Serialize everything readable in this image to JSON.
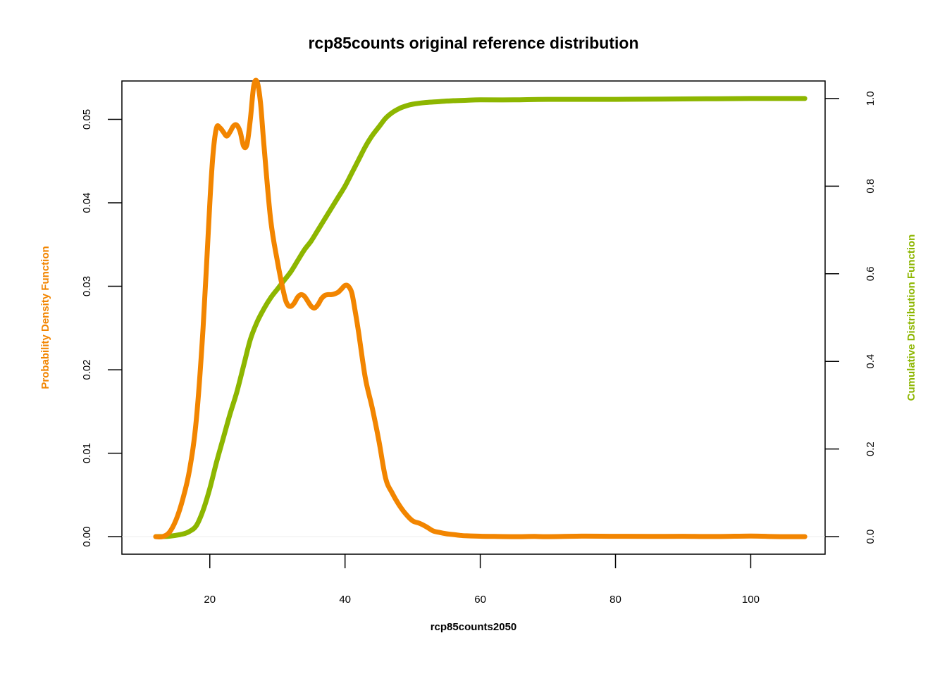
{
  "chart_data": {
    "type": "line",
    "title": "rcp85counts original reference distribution",
    "xlabel": "rcp85counts2050",
    "ylabel_left": "Probability Density Function",
    "ylabel_right": "Cumulative Distribution Function",
    "xlim": [
      7,
      111
    ],
    "ylim_left": [
      -0.0021,
      0.0546
    ],
    "ylim_right": [
      -0.04,
      1.04
    ],
    "x_ticks": [
      20,
      40,
      60,
      80,
      100
    ],
    "x_tick_labels": [
      "20",
      "40",
      "60",
      "80",
      "100"
    ],
    "y_left_ticks": [
      0,
      0.01,
      0.02,
      0.03,
      0.04,
      0.05
    ],
    "y_left_tick_labels": [
      "0.00",
      "0.01",
      "0.02",
      "0.03",
      "0.04",
      "0.05"
    ],
    "y_right_ticks": [
      0,
      0.2,
      0.4,
      0.6,
      0.8,
      1.0
    ],
    "y_right_tick_labels": [
      "0.0",
      "0.2",
      "0.4",
      "0.6",
      "0.8",
      "1.0"
    ],
    "grid": false,
    "colors": {
      "pdf": "#f28500",
      "cdf": "#8db600",
      "zero_line": "#eeeeee"
    },
    "series": [
      {
        "axis": "left",
        "x": [
          12,
          13,
          14,
          15,
          16,
          17,
          18,
          19,
          20,
          20.5,
          21,
          21.5,
          22,
          22.5,
          23,
          23.5,
          24,
          24.5,
          25,
          25.5,
          26,
          26.5,
          27,
          27.5,
          28,
          29,
          30,
          31,
          31.5,
          32,
          32.5,
          33,
          33.5,
          34,
          34.5,
          35,
          35.5,
          36,
          36.5,
          37,
          37.5,
          38,
          38.5,
          39,
          39.5,
          40,
          40.5,
          41,
          41.5,
          42,
          43,
          44,
          45,
          46,
          47,
          48,
          49,
          50,
          51,
          52,
          53,
          54,
          55,
          56,
          57,
          58,
          60,
          62,
          65,
          68,
          70,
          75,
          80,
          85,
          90,
          95,
          100,
          103,
          105,
          108
        ],
        "y": [
          0,
          0,
          0.0005,
          0.002,
          0.0045,
          0.008,
          0.014,
          0.025,
          0.04,
          0.046,
          0.049,
          0.049,
          0.0485,
          0.048,
          0.0485,
          0.0492,
          0.0493,
          0.0485,
          0.0468,
          0.047,
          0.05,
          0.054,
          0.0545,
          0.052,
          0.047,
          0.038,
          0.033,
          0.029,
          0.0278,
          0.0276,
          0.028,
          0.0287,
          0.029,
          0.0288,
          0.0282,
          0.0276,
          0.0274,
          0.0278,
          0.0285,
          0.0289,
          0.029,
          0.029,
          0.0291,
          0.0293,
          0.0297,
          0.0301,
          0.03,
          0.0292,
          0.027,
          0.0245,
          0.019,
          0.0155,
          0.0115,
          0.007,
          0.0052,
          0.0038,
          0.0027,
          0.0019,
          0.0016,
          0.0012,
          0.0007,
          0.0005,
          0.00035,
          0.00025,
          0.00015,
          0.0001,
          5e-05,
          3e-05,
          0,
          3e-05,
          0,
          6e-05,
          4e-05,
          3e-05,
          4e-05,
          2e-05,
          8e-05,
          2e-05,
          0,
          0
        ]
      },
      {
        "axis": "right",
        "x": [
          12,
          14,
          16,
          17,
          18,
          19,
          20,
          21,
          22,
          23,
          24,
          25,
          26,
          27,
          28,
          29,
          30,
          31,
          32,
          33,
          34,
          35,
          36,
          37,
          38,
          39,
          40,
          41,
          42,
          43,
          44,
          45,
          46,
          47,
          48,
          49,
          50,
          52,
          54,
          56,
          58,
          60,
          65,
          70,
          80,
          90,
          100,
          108
        ],
        "y": [
          0,
          0.001,
          0.006,
          0.012,
          0.025,
          0.06,
          0.11,
          0.17,
          0.225,
          0.28,
          0.33,
          0.39,
          0.45,
          0.49,
          0.52,
          0.545,
          0.565,
          0.585,
          0.605,
          0.63,
          0.655,
          0.675,
          0.7,
          0.725,
          0.75,
          0.775,
          0.8,
          0.83,
          0.86,
          0.89,
          0.915,
          0.935,
          0.955,
          0.968,
          0.977,
          0.983,
          0.987,
          0.991,
          0.993,
          0.995,
          0.996,
          0.997,
          0.997,
          0.998,
          0.998,
          0.999,
          1.0,
          1.0
        ]
      }
    ]
  }
}
